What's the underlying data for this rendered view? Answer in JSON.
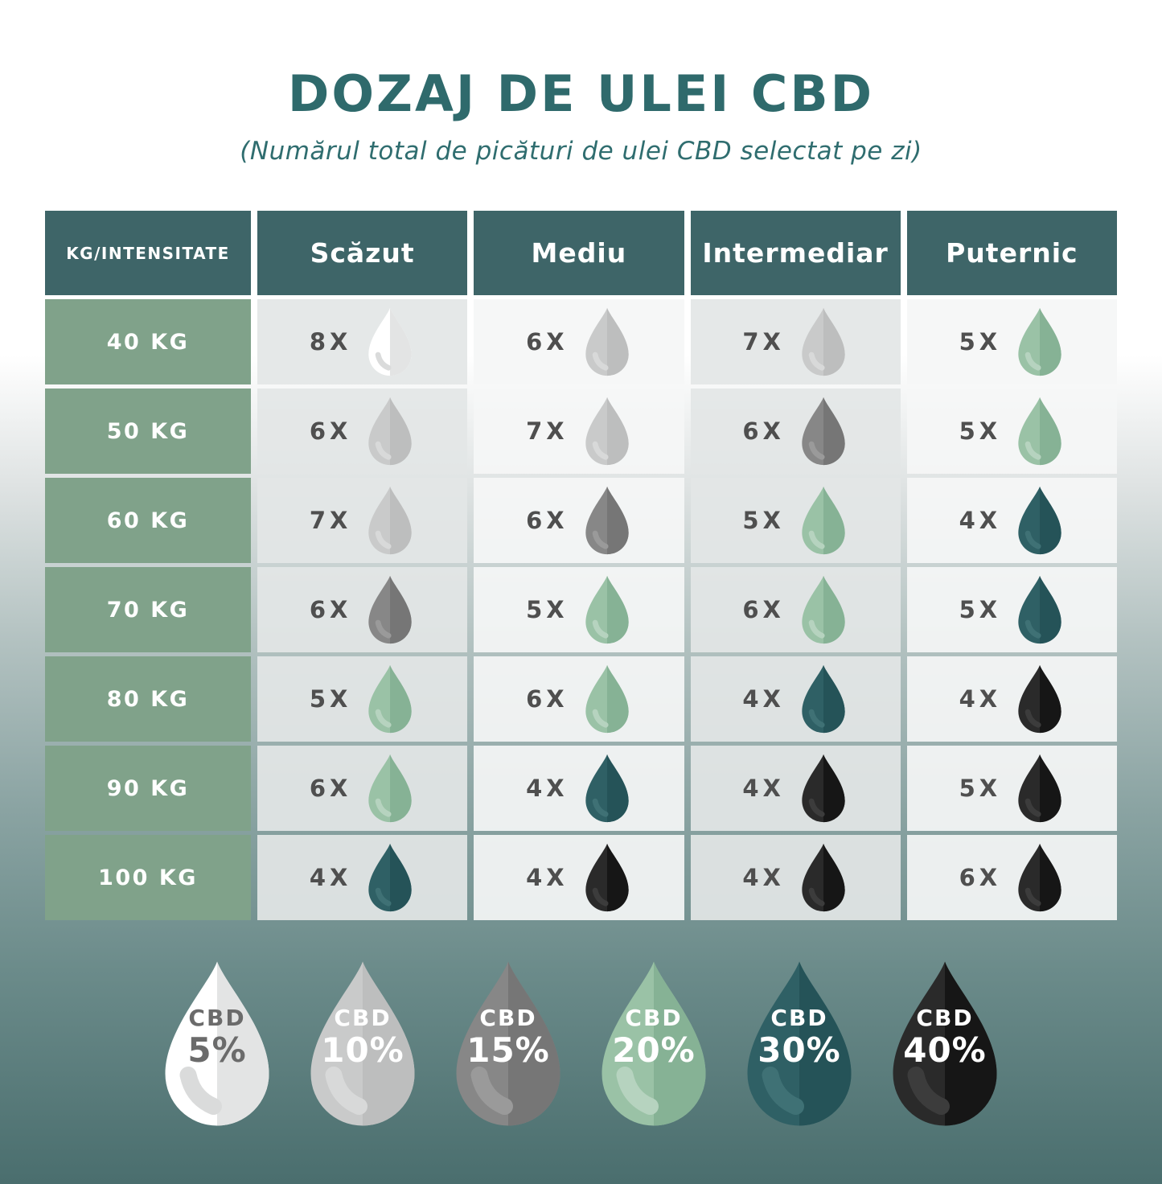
{
  "chart_data": {
    "type": "table",
    "title": "DOZAJ DE ULEI CBD",
    "subtitle": "(Numărul total de picături de ulei CBD selectat pe zi)",
    "columns": [
      "KG/INTENSITATE",
      "Scăzut",
      "Mediu",
      "Intermediar",
      "Puternic"
    ],
    "rows": [
      {
        "label": "40 KG",
        "cells": [
          {
            "count": "8X",
            "drop": "5"
          },
          {
            "count": "6X",
            "drop": "10"
          },
          {
            "count": "7X",
            "drop": "10"
          },
          {
            "count": "5X",
            "drop": "20"
          }
        ]
      },
      {
        "label": "50 KG",
        "cells": [
          {
            "count": "6X",
            "drop": "10"
          },
          {
            "count": "7X",
            "drop": "10"
          },
          {
            "count": "6X",
            "drop": "15"
          },
          {
            "count": "5X",
            "drop": "20"
          }
        ]
      },
      {
        "label": "60 KG",
        "cells": [
          {
            "count": "7X",
            "drop": "10"
          },
          {
            "count": "6X",
            "drop": "15"
          },
          {
            "count": "5X",
            "drop": "20"
          },
          {
            "count": "4X",
            "drop": "30"
          }
        ]
      },
      {
        "label": "70 KG",
        "cells": [
          {
            "count": "6X",
            "drop": "15"
          },
          {
            "count": "5X",
            "drop": "20"
          },
          {
            "count": "6X",
            "drop": "20"
          },
          {
            "count": "5X",
            "drop": "30"
          }
        ]
      },
      {
        "label": "80 KG",
        "cells": [
          {
            "count": "5X",
            "drop": "20"
          },
          {
            "count": "6X",
            "drop": "20"
          },
          {
            "count": "4X",
            "drop": "30"
          },
          {
            "count": "4X",
            "drop": "40"
          }
        ]
      },
      {
        "label": "90 KG",
        "cells": [
          {
            "count": "6X",
            "drop": "20"
          },
          {
            "count": "4X",
            "drop": "30"
          },
          {
            "count": "4X",
            "drop": "40"
          },
          {
            "count": "5X",
            "drop": "40"
          }
        ]
      },
      {
        "label": "100 KG",
        "cells": [
          {
            "count": "4X",
            "drop": "30"
          },
          {
            "count": "4X",
            "drop": "40"
          },
          {
            "count": "4X",
            "drop": "40"
          },
          {
            "count": "6X",
            "drop": "40"
          }
        ]
      }
    ],
    "legend": [
      {
        "line1": "CBD",
        "line2": "5%",
        "drop": "5"
      },
      {
        "line1": "CBD",
        "line2": "10%",
        "drop": "10"
      },
      {
        "line1": "CBD",
        "line2": "15%",
        "drop": "15"
      },
      {
        "line1": "CBD",
        "line2": "20%",
        "drop": "20"
      },
      {
        "line1": "CBD",
        "line2": "30%",
        "drop": "30"
      },
      {
        "line1": "CBD",
        "line2": "40%",
        "drop": "40"
      }
    ]
  },
  "colors": {
    "title_text": "#2f6a6c",
    "header_bg": "#3e6568",
    "header_text": "#ffffff",
    "weight_label_bg": "#80a28a",
    "weight_label_text": "#ffffff",
    "cell_bg_dark": "#e3e6e6",
    "cell_bg_light": "#f5f6f6",
    "count_text": "#4f4f4f",
    "page_gradient_top": "#ffffff",
    "page_gradient_bottom": "#4a6e6e",
    "drops": {
      "5": {
        "left": "#ffffff",
        "right": "#e3e4e4",
        "hl": "#dadbdb",
        "text": "#6b6b6b"
      },
      "10": {
        "left": "#c9caca",
        "right": "#bdbebe",
        "hl": "#d8d9d9",
        "text": "#ffffff"
      },
      "15": {
        "left": "#878787",
        "right": "#767676",
        "hl": "#9a9a9a",
        "text": "#ffffff"
      },
      "20": {
        "left": "#9ac2a6",
        "right": "#86b295",
        "hl": "#b6d3bf",
        "text": "#ffffff"
      },
      "30": {
        "left": "#2f6065",
        "right": "#255358",
        "hl": "#3f7175",
        "text": "#ffffff"
      },
      "40": {
        "left": "#2a2a2a",
        "right": "#161616",
        "hl": "#3c3c3c",
        "text": "#ffffff"
      }
    }
  }
}
